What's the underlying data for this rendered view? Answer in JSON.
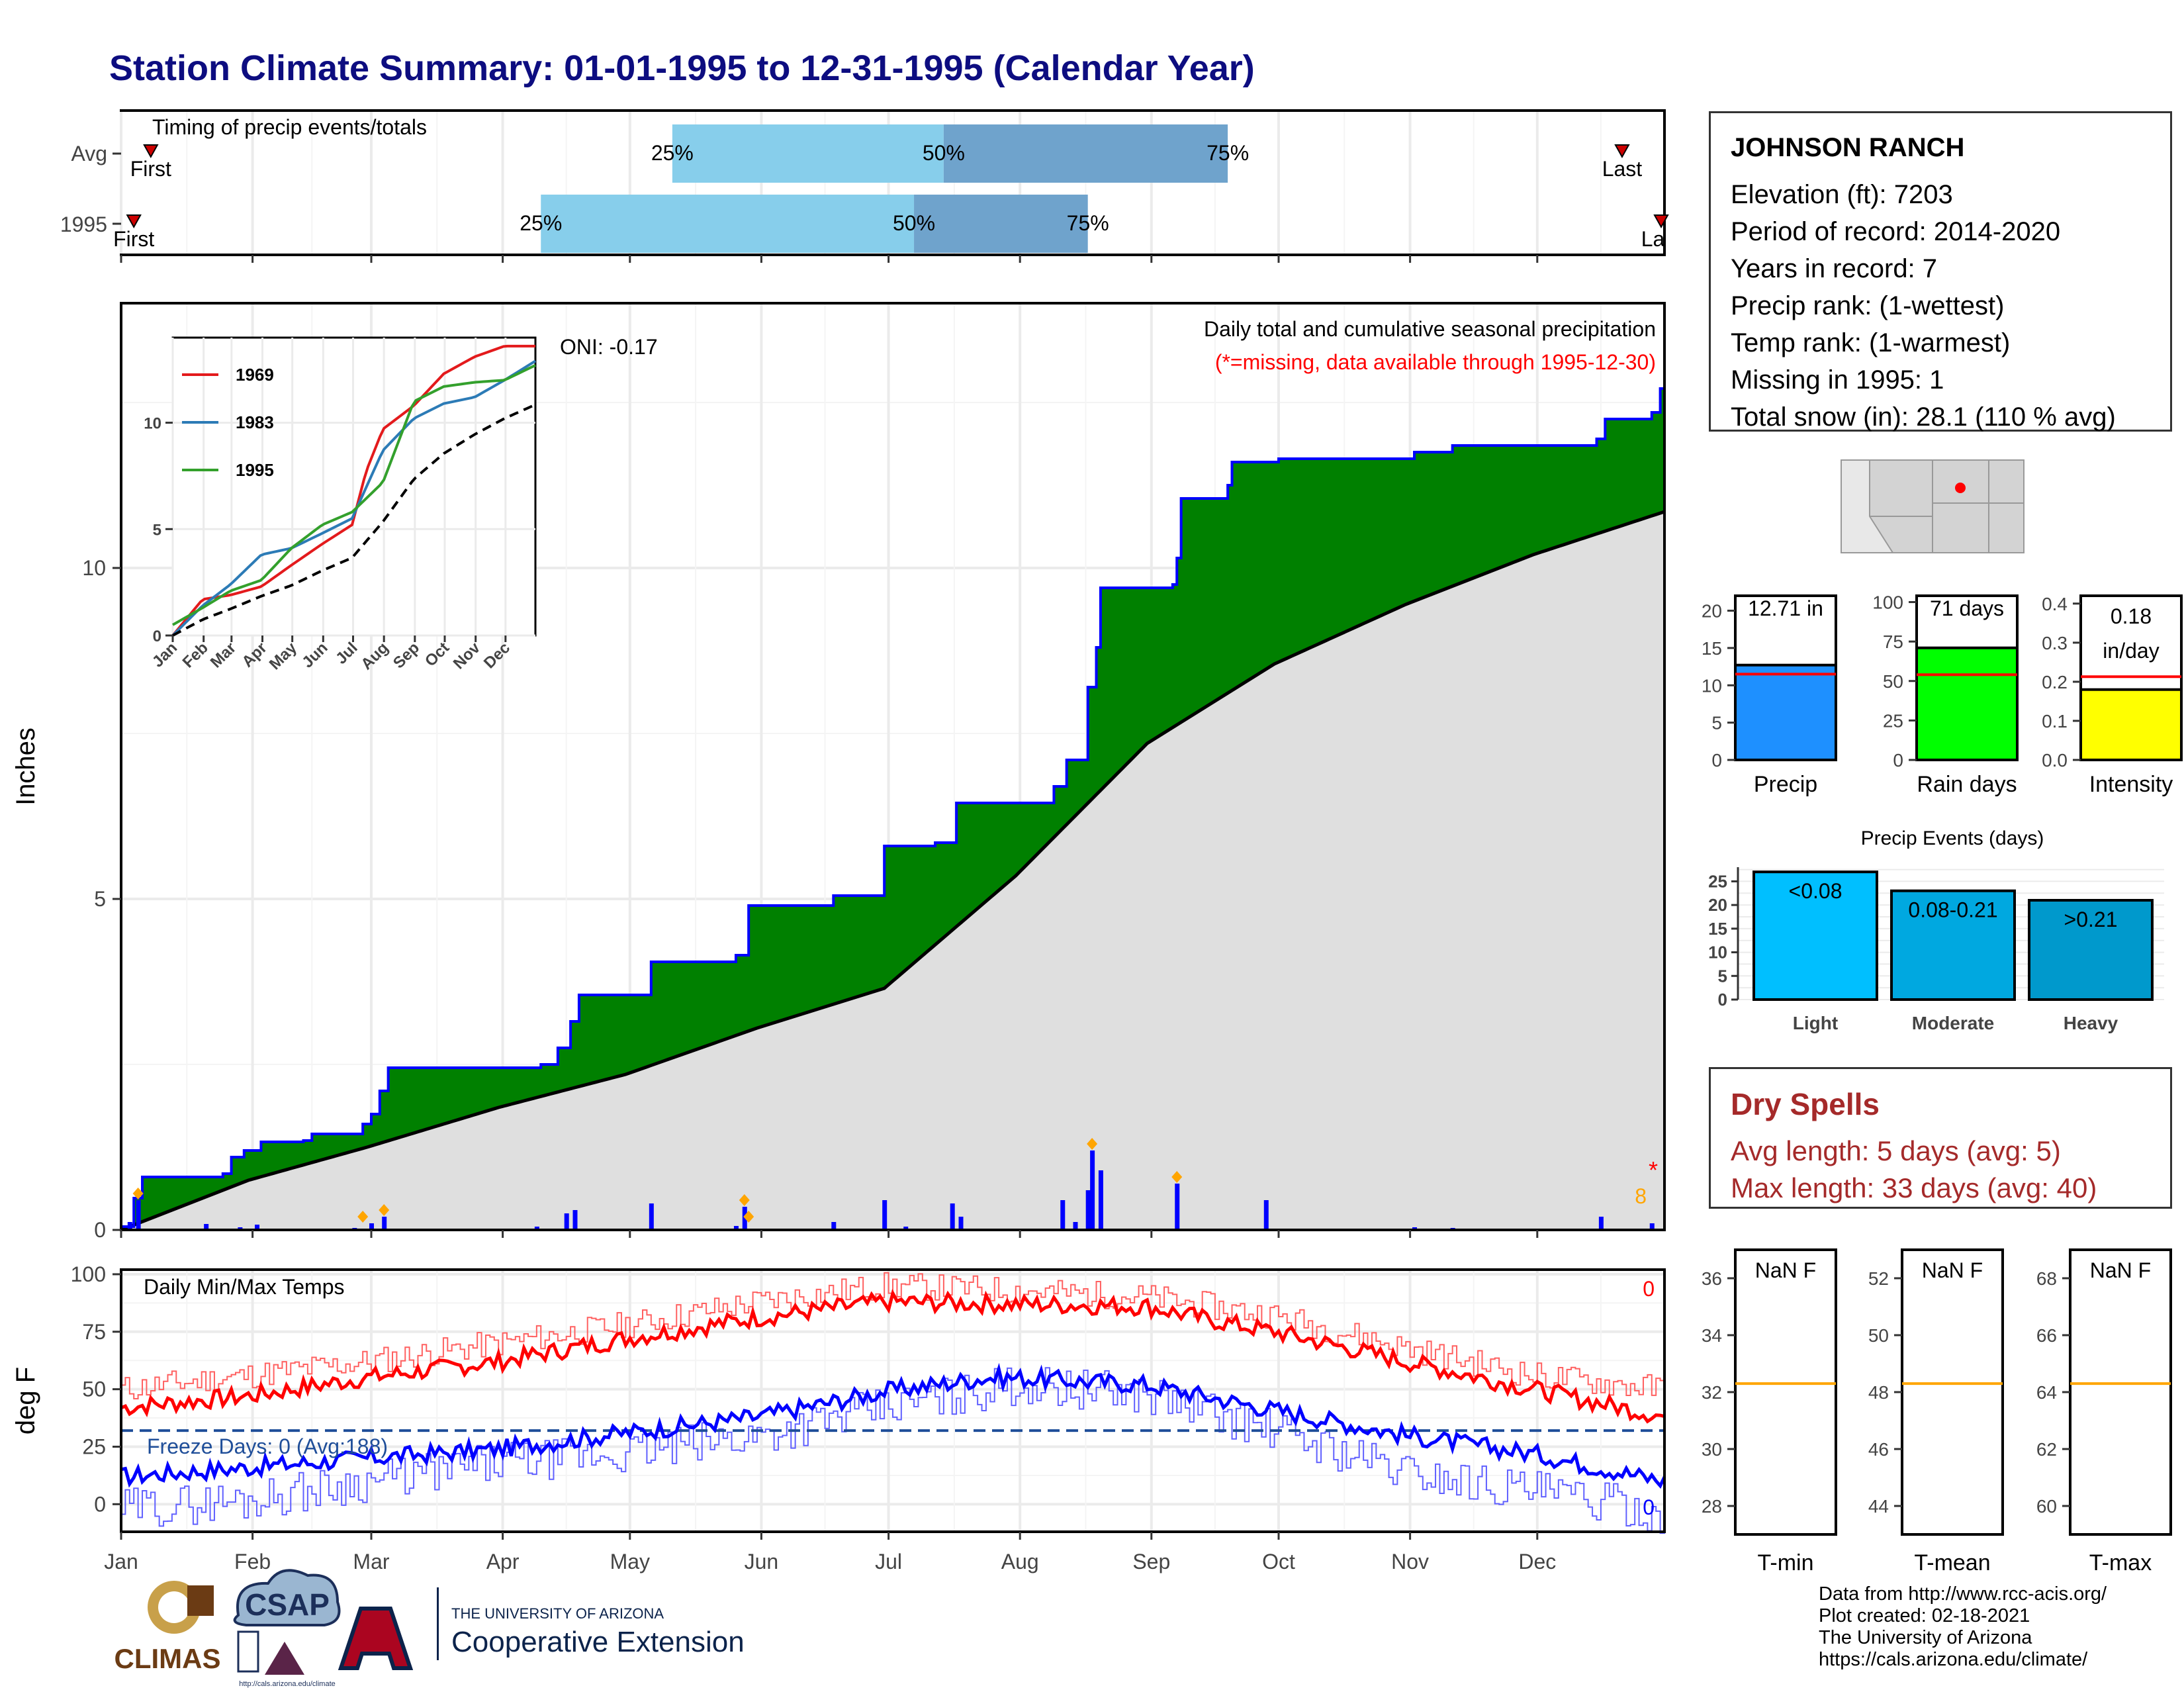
{
  "header": {
    "title": "Station Climate Summary: 01-01-1995 to 12-31-1995 (Calendar Year)"
  },
  "colors": {
    "navy": "#0d0d80",
    "green": "#008000",
    "blue": "#0000ff",
    "red": "#ff0000",
    "lightblue": "#87ceeb",
    "steelblue": "#6fa3cc",
    "grey": "#dfdfdf",
    "dryred": "#a52a2a"
  },
  "timing": {
    "label": "Timing of precip events/totals",
    "rows": [
      {
        "name": "Avg",
        "first_label": "First",
        "last_label": "Last",
        "first_doy": 8,
        "last_doy": 355,
        "p25": 131,
        "p50": 195,
        "p75": 262
      },
      {
        "name": "1995",
        "first_label": "First",
        "last_label": "Last",
        "first_doy": 4,
        "last_doy": 365,
        "p25": 100,
        "p50": 188,
        "p75": 229
      }
    ],
    "pct_labels": [
      "25%",
      "50%",
      "75%"
    ]
  },
  "main_chart": {
    "ylabel": "Inches",
    "yticks": [
      0,
      5,
      10
    ],
    "ylim": [
      0,
      14
    ],
    "annotation_title": "Daily total and cumulative seasonal precipitation",
    "annotation_missing": "(*=missing, data available through 1995-12-30)",
    "oni": "ONI: -0.17",
    "snow_count": "8",
    "missing_marker": "*"
  },
  "chart_data": [
    {
      "type": "area",
      "name": "cumulative-precip-1995",
      "cumulative_1995": [
        [
          1,
          0.05
        ],
        [
          4,
          0.48
        ],
        [
          6,
          0.8
        ],
        [
          25,
          0.85
        ],
        [
          27,
          1.1
        ],
        [
          30,
          1.2
        ],
        [
          34,
          1.33
        ],
        [
          44,
          1.35
        ],
        [
          46,
          1.45
        ],
        [
          58,
          1.6
        ],
        [
          60,
          1.75
        ],
        [
          62,
          2.1
        ],
        [
          64,
          2.45
        ],
        [
          100,
          2.5
        ],
        [
          104,
          2.75
        ],
        [
          107,
          3.15
        ],
        [
          109,
          3.55
        ],
        [
          126,
          4.05
        ],
        [
          146,
          4.15
        ],
        [
          149,
          4.9
        ],
        [
          169,
          5.05
        ],
        [
          181,
          5.8
        ],
        [
          193,
          5.85
        ],
        [
          198,
          6.45
        ],
        [
          221,
          6.7
        ],
        [
          224,
          7.1
        ],
        [
          229,
          8.2
        ],
        [
          231,
          8.8
        ],
        [
          232,
          9.7
        ],
        [
          249,
          9.75
        ],
        [
          250,
          10.15
        ],
        [
          251,
          11.05
        ],
        [
          262,
          11.25
        ],
        [
          263,
          11.6
        ],
        [
          274,
          11.65
        ],
        [
          306,
          11.75
        ],
        [
          315,
          11.85
        ],
        [
          349,
          11.95
        ],
        [
          351,
          12.25
        ],
        [
          362,
          12.35
        ],
        [
          364,
          12.71
        ]
      ],
      "avg_cumulative": [
        [
          1,
          0
        ],
        [
          31,
          0.75
        ],
        [
          59,
          1.25
        ],
        [
          90,
          1.85
        ],
        [
          120,
          2.35
        ],
        [
          151,
          3.05
        ],
        [
          181,
          3.65
        ],
        [
          212,
          5.35
        ],
        [
          243,
          7.35
        ],
        [
          273,
          8.55
        ],
        [
          304,
          9.45
        ],
        [
          334,
          10.2
        ],
        [
          365,
          10.85
        ]
      ],
      "daily_precip_events": [
        [
          3,
          0.12
        ],
        [
          5,
          0.45
        ],
        [
          21,
          0.09
        ],
        [
          29,
          0.04
        ],
        [
          33,
          0.08
        ],
        [
          56,
          0.03
        ],
        [
          60,
          0.1
        ],
        [
          63,
          0.2
        ],
        [
          99,
          0.05
        ],
        [
          106,
          0.25
        ],
        [
          108,
          0.3
        ],
        [
          126,
          0.4
        ],
        [
          146,
          0.06
        ],
        [
          148,
          0.35
        ],
        [
          169,
          0.12
        ],
        [
          181,
          0.45
        ],
        [
          186,
          0.05
        ],
        [
          197,
          0.4
        ],
        [
          199,
          0.2
        ],
        [
          223,
          0.45
        ],
        [
          226,
          0.12
        ],
        [
          229,
          0.6
        ],
        [
          230,
          1.2
        ],
        [
          232,
          0.9
        ],
        [
          250,
          0.7
        ],
        [
          271,
          0.45
        ],
        [
          306,
          0.04
        ],
        [
          315,
          0.03
        ],
        [
          350,
          0.2
        ],
        [
          362,
          0.1
        ]
      ]
    },
    {
      "type": "line",
      "name": "inset-cumulative",
      "x_tick_labels": [
        "Jan",
        "Feb",
        "Mar",
        "Apr",
        "May",
        "Jun",
        "Jul",
        "Aug",
        "Sep",
        "Oct",
        "Nov",
        "Dec"
      ],
      "yticks": [
        0,
        5,
        10
      ],
      "ylim": [
        0,
        14
      ],
      "series": [
        {
          "name": "1969",
          "color": "#e31a1c",
          "values": [
            [
              1,
              0
            ],
            [
              31,
              1.7
            ],
            [
              59,
              1.9
            ],
            [
              90,
              2.3
            ],
            [
              120,
              3.3
            ],
            [
              151,
              4.3
            ],
            [
              181,
              5.2
            ],
            [
              195,
              7.7
            ],
            [
              212,
              9.7
            ],
            [
              243,
              10.8
            ],
            [
              273,
              12.3
            ],
            [
              304,
              13.1
            ],
            [
              334,
              13.6
            ],
            [
              365,
              13.6
            ]
          ]
        },
        {
          "name": "1983",
          "color": "#2c7bb6",
          "values": [
            [
              1,
              0
            ],
            [
              31,
              1.4
            ],
            [
              59,
              2.4
            ],
            [
              90,
              3.8
            ],
            [
              120,
              4.1
            ],
            [
              151,
              4.8
            ],
            [
              181,
              5.5
            ],
            [
              212,
              8.7
            ],
            [
              243,
              10.2
            ],
            [
              273,
              10.9
            ],
            [
              304,
              11.2
            ],
            [
              334,
              12.0
            ],
            [
              365,
              12.9
            ]
          ]
        },
        {
          "name": "1995",
          "color": "#33a02c",
          "values": [
            [
              1,
              0.5
            ],
            [
              31,
              1.3
            ],
            [
              59,
              2.1
            ],
            [
              90,
              2.6
            ],
            [
              120,
              4.1
            ],
            [
              151,
              5.2
            ],
            [
              181,
              5.8
            ],
            [
              212,
              7.2
            ],
            [
              243,
              11.0
            ],
            [
              273,
              11.7
            ],
            [
              304,
              11.9
            ],
            [
              334,
              12.0
            ],
            [
              365,
              12.7
            ]
          ]
        },
        {
          "name": "avg",
          "color": "#000000",
          "dashed": true,
          "values": [
            [
              1,
              0
            ],
            [
              31,
              0.75
            ],
            [
              59,
              1.25
            ],
            [
              90,
              1.85
            ],
            [
              120,
              2.35
            ],
            [
              151,
              3.05
            ],
            [
              181,
              3.65
            ],
            [
              212,
              5.35
            ],
            [
              243,
              7.35
            ],
            [
              273,
              8.55
            ],
            [
              304,
              9.45
            ],
            [
              334,
              10.2
            ],
            [
              365,
              10.85
            ]
          ]
        }
      ]
    },
    {
      "type": "line",
      "name": "daily-temps",
      "label": "Daily Min/Max Temps",
      "ylabel": "deg F",
      "yticks": [
        0,
        25,
        50,
        75,
        100
      ],
      "ylim": [
        -12,
        102
      ],
      "freeze_line": 32,
      "freeze_label": "Freeze Days: 0 (Avg:188)",
      "top_count": "0",
      "bottom_count": "0",
      "month_labels": [
        "Jan",
        "Feb",
        "Mar",
        "Apr",
        "May",
        "Jun",
        "Jul",
        "Aug",
        "Sep",
        "Oct",
        "Nov",
        "Dec"
      ],
      "tmax_anchor": [
        [
          1,
          42
        ],
        [
          31,
          47
        ],
        [
          59,
          55
        ],
        [
          90,
          62
        ],
        [
          120,
          72
        ],
        [
          151,
          81
        ],
        [
          181,
          88
        ],
        [
          212,
          87
        ],
        [
          243,
          86
        ],
        [
          258,
          80
        ],
        [
          273,
          75
        ],
        [
          304,
          62
        ],
        [
          334,
          50
        ],
        [
          365,
          38
        ]
      ],
      "tmin_anchor": [
        [
          1,
          12
        ],
        [
          31,
          16
        ],
        [
          59,
          20
        ],
        [
          90,
          24
        ],
        [
          120,
          31
        ],
        [
          151,
          38
        ],
        [
          181,
          49
        ],
        [
          205,
          55
        ],
        [
          212,
          55
        ],
        [
          243,
          52
        ],
        [
          273,
          41
        ],
        [
          304,
          30
        ],
        [
          334,
          22
        ],
        [
          365,
          10
        ]
      ],
      "tmax_avg_anchor": [
        [
          1,
          50
        ],
        [
          31,
          56
        ],
        [
          59,
          62
        ],
        [
          90,
          70
        ],
        [
          120,
          78
        ],
        [
          151,
          88
        ],
        [
          181,
          95
        ],
        [
          212,
          93
        ],
        [
          243,
          90
        ],
        [
          273,
          82
        ],
        [
          304,
          68
        ],
        [
          334,
          56
        ],
        [
          365,
          50
        ]
      ],
      "tmin_avg_anchor": [
        [
          1,
          -2
        ],
        [
          31,
          2
        ],
        [
          59,
          10
        ],
        [
          90,
          18
        ],
        [
          120,
          22
        ],
        [
          151,
          30
        ],
        [
          181,
          42
        ],
        [
          212,
          52
        ],
        [
          243,
          48
        ],
        [
          273,
          32
        ],
        [
          304,
          14
        ],
        [
          334,
          6
        ],
        [
          365,
          -4
        ]
      ]
    },
    {
      "type": "bar",
      "name": "precip-total",
      "label": "12.71 in",
      "axis_label": "Precip",
      "value": 12.71,
      "avg": 11.5,
      "yticks": [
        0,
        5,
        10,
        15,
        20
      ],
      "ylim": [
        0,
        22
      ],
      "color": "#1e90ff"
    },
    {
      "type": "bar",
      "name": "rain-days",
      "label": "71 days",
      "axis_label": "Rain days",
      "value": 71,
      "avg": 54,
      "yticks": [
        0,
        25,
        50,
        75,
        100
      ],
      "ylim": [
        0,
        104
      ],
      "color": "#00ff00"
    },
    {
      "type": "bar",
      "name": "intensity",
      "label_a": "0.18",
      "label_b": "in/day",
      "axis_label": "Intensity",
      "value": 0.18,
      "avg": 0.213,
      "yticks": [
        0.0,
        0.1,
        0.2,
        0.3,
        0.4
      ],
      "ylim": [
        0,
        0.42
      ],
      "color": "#ffff00"
    },
    {
      "type": "bar",
      "name": "precip-events",
      "title": "Precip Events (days)",
      "categories": [
        "Light",
        "Moderate",
        "Heavy"
      ],
      "bar_labels": [
        "<0.08",
        "0.08-0.21",
        ">0.21"
      ],
      "values": [
        27,
        23,
        21
      ],
      "colors": [
        "#00bfff",
        "#00a8e0",
        "#0099cc"
      ],
      "yticks": [
        0,
        5,
        10,
        15,
        20,
        25
      ],
      "ylim": [
        0,
        28
      ]
    },
    {
      "type": "bar",
      "name": "temp-ranks",
      "panels": [
        {
          "axis_label": "T-min",
          "label": "NaN F",
          "yticks": [
            28,
            30,
            32,
            34,
            36
          ],
          "ylim": [
            27,
            37
          ],
          "avg": 32.3
        },
        {
          "axis_label": "T-mean",
          "label": "NaN F",
          "yticks": [
            44,
            46,
            48,
            50,
            52
          ],
          "ylim": [
            43,
            53
          ],
          "avg": 48.3
        },
        {
          "axis_label": "T-max",
          "label": "NaN F",
          "yticks": [
            60,
            62,
            64,
            66,
            68
          ],
          "ylim": [
            59,
            69
          ],
          "avg": 64.3
        }
      ]
    }
  ],
  "station": {
    "name": "JOHNSON RANCH",
    "lines": [
      "Elevation (ft): 7203",
      "Period of record: 2014-2020",
      "Years in record: 7",
      "Precip rank:  (1-wettest)",
      "Temp rank:  (1-warmest)",
      "Missing in 1995: 1",
      "Total snow (in): 28.1 (110 % avg)"
    ]
  },
  "dry_spells": {
    "title": "Dry Spells",
    "avg_line": "Avg length: 5 days (avg: 5)",
    "max_line": "Max length: 33 days (avg: 40)"
  },
  "logos": {
    "climas": "CLIMAS",
    "csap": "CSAP",
    "csap_url": "http://cals.arizona.edu/climate",
    "ua_top": "THE UNIVERSITY OF ARIZONA",
    "ua_bottom": "Cooperative Extension"
  },
  "credits": [
    "Data from http://www.rcc-acis.org/",
    "Plot created: 02-18-2021",
    "The University of Arizona",
    "https://cals.arizona.edu/climate/"
  ]
}
